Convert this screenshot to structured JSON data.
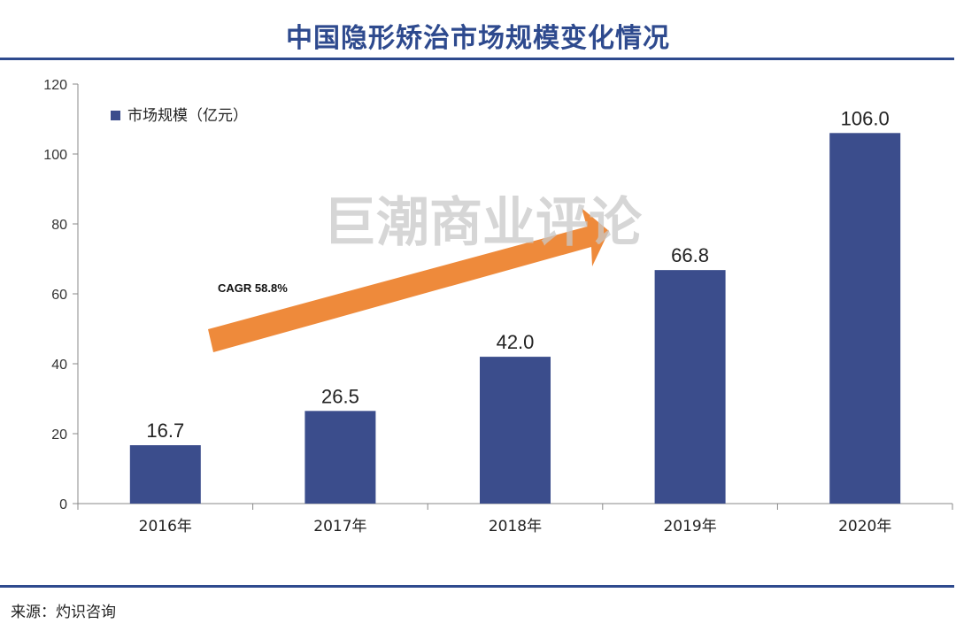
{
  "header": {
    "title": "中国隐形矫治市场规模变化情况"
  },
  "footer": {
    "source": "来源：灼识咨询"
  },
  "watermark": "巨潮商业评论",
  "annotation": {
    "cagr_label": "CAGR 58.8%"
  },
  "colors": {
    "bar": "#3b4d8c",
    "arrow": "#ee8a3b",
    "title": "#2e4a8e"
  },
  "chart_data": {
    "type": "bar",
    "categories": [
      "2016年",
      "2017年",
      "2018年",
      "2019年",
      "2020年"
    ],
    "series": [
      {
        "name": "市场规模（亿元）",
        "values": [
          16.7,
          26.5,
          42.0,
          66.8,
          106.0
        ]
      }
    ],
    "data_labels": [
      "16.7",
      "26.5",
      "42.0",
      "66.8",
      "106.0"
    ],
    "yticks": [
      "0",
      "20",
      "40",
      "60",
      "80",
      "100",
      "120"
    ],
    "ylim": [
      0,
      120
    ],
    "grid": false,
    "legend": "top-left"
  }
}
